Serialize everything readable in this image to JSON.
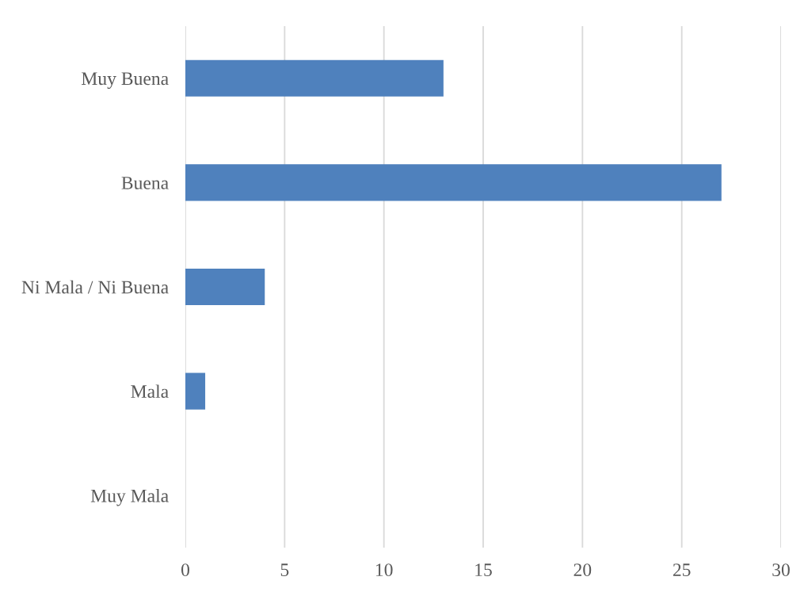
{
  "chart_data": {
    "type": "bar",
    "orientation": "horizontal",
    "categories": [
      "Muy Buena",
      "Buena",
      "Ni Mala / Ni Buena",
      "Mala",
      "Muy Mala"
    ],
    "values": [
      13,
      27,
      4,
      1,
      0
    ],
    "color": "#4f81bd",
    "xlim": [
      0,
      30
    ],
    "xticks": [
      0,
      5,
      10,
      15,
      20,
      25,
      30
    ],
    "grid": "x"
  }
}
